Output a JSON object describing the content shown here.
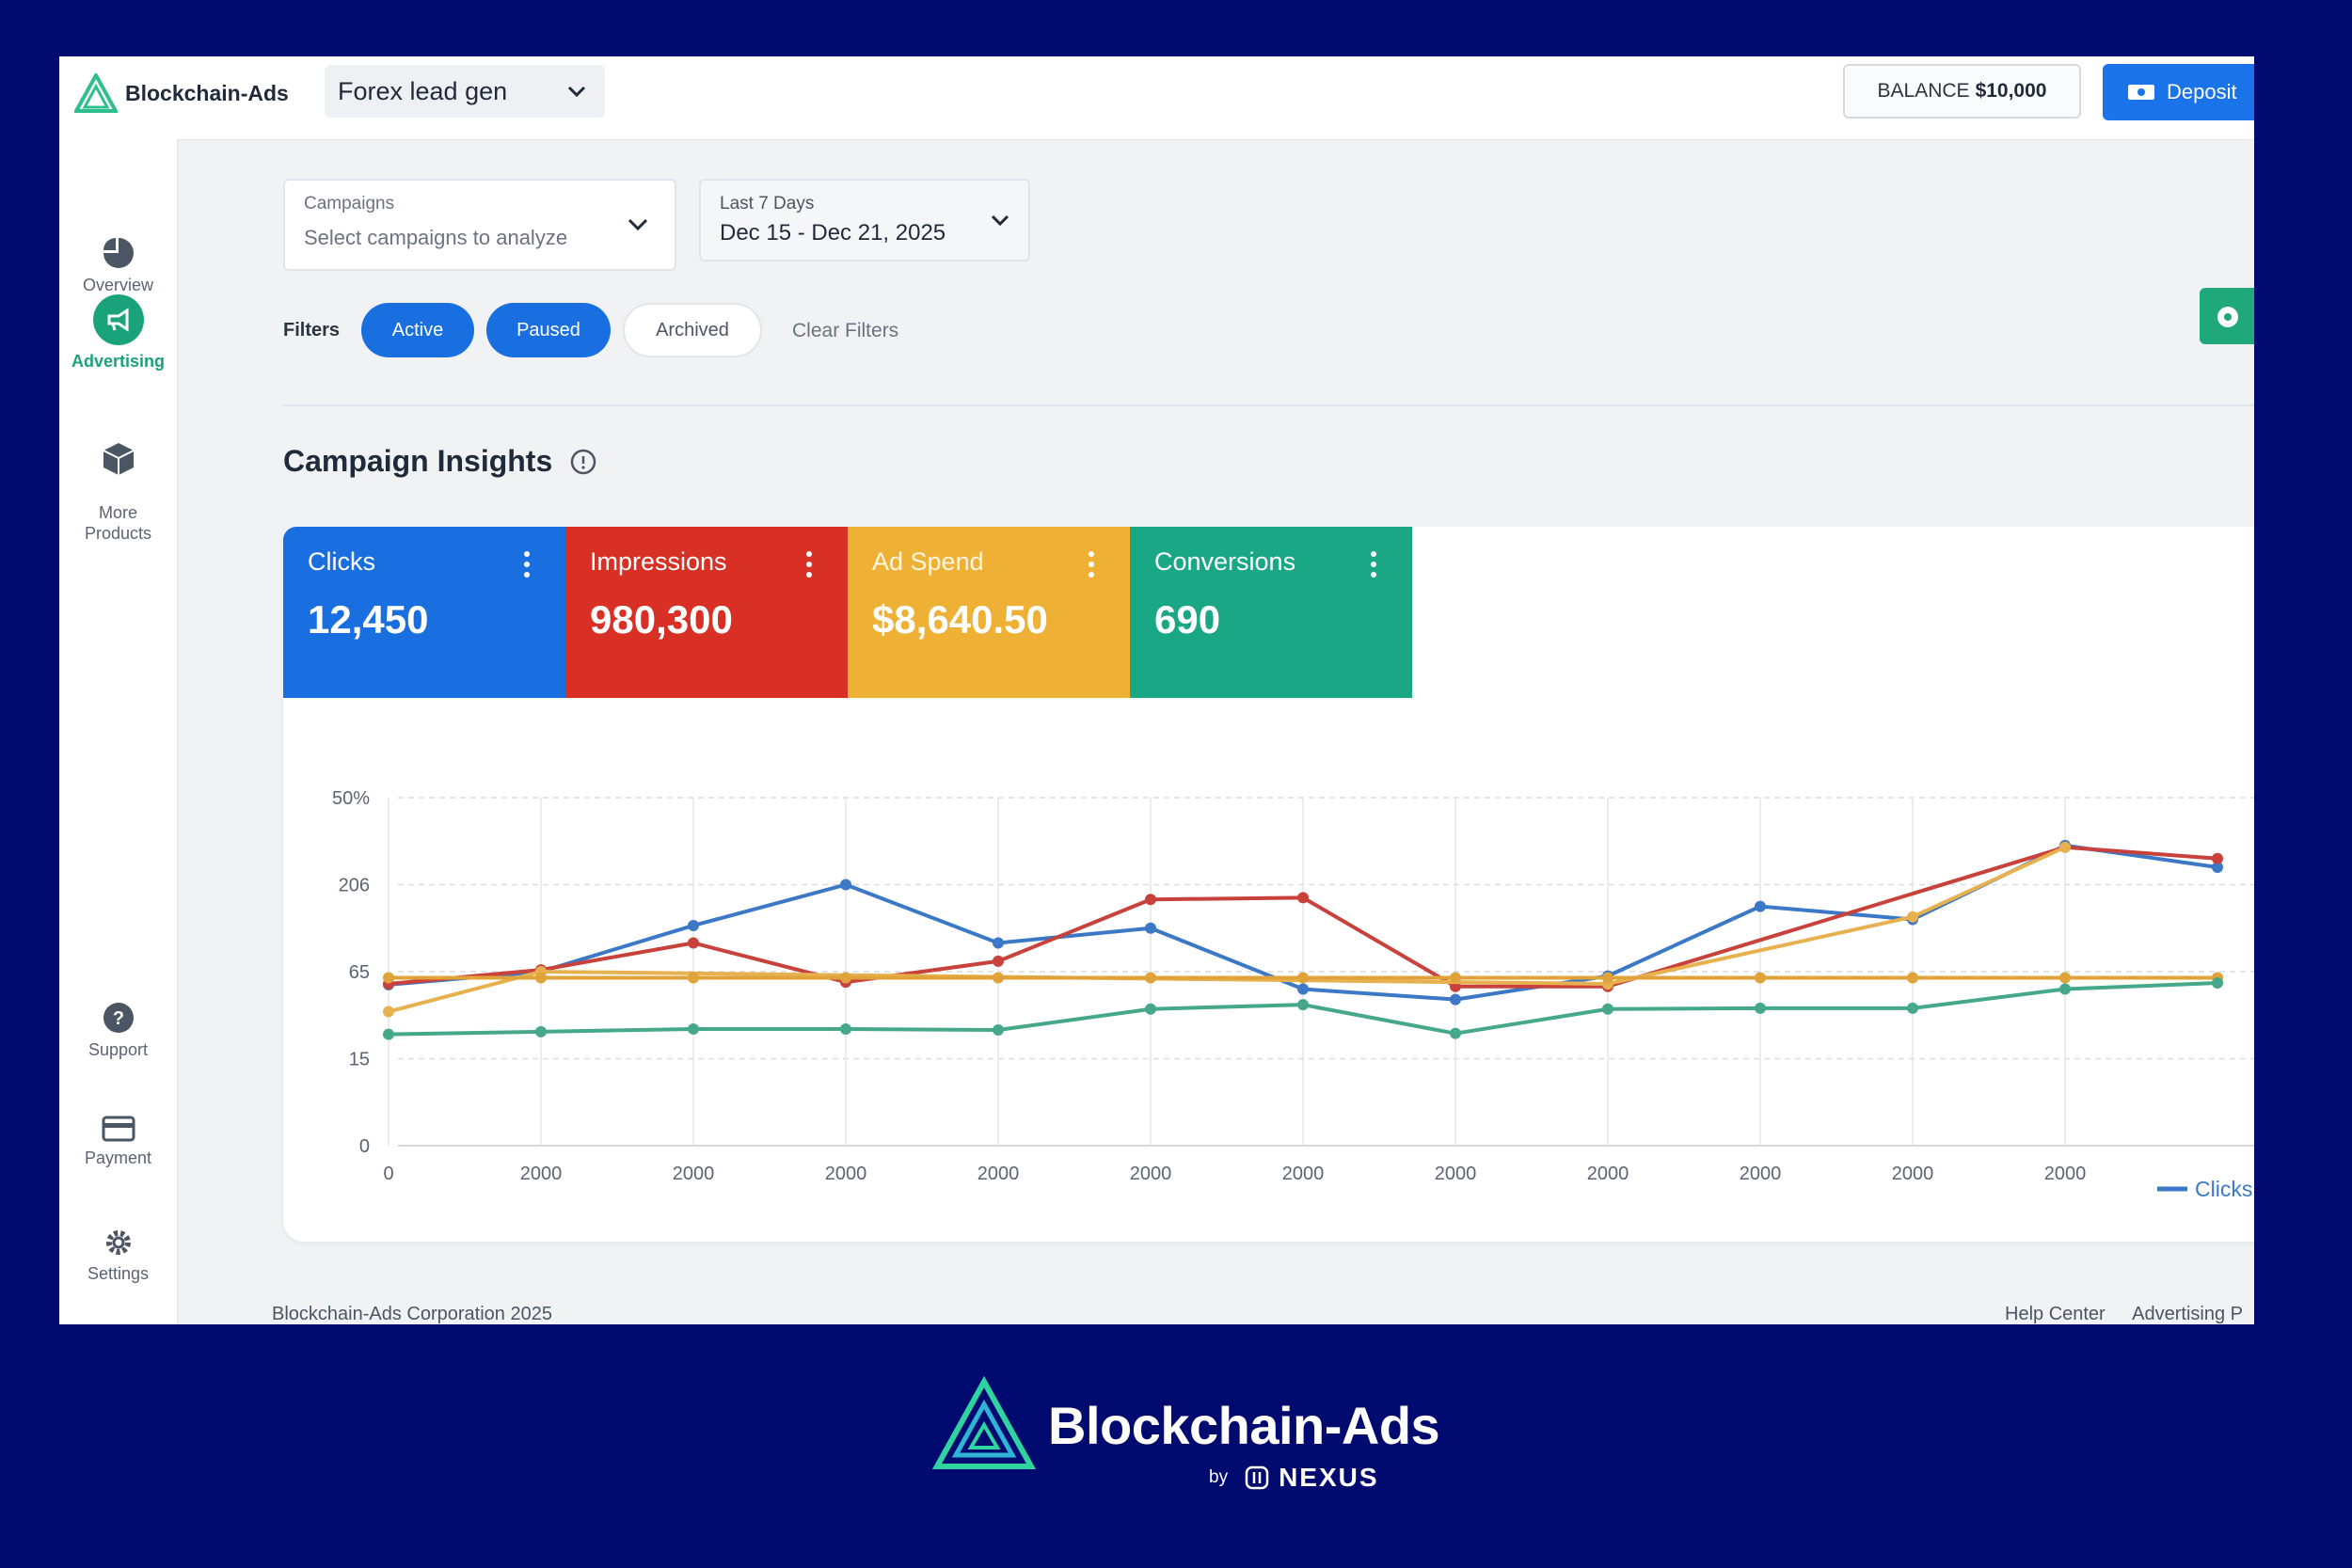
{
  "header": {
    "logo_text": "Blockchain-Ads",
    "campaign_select": "Forex lead gen",
    "balance_label": "BALANCE",
    "balance_value": "$10,000",
    "deposit_label": "Deposit"
  },
  "sidebar": {
    "items": [
      {
        "label": "Overview",
        "icon": "pie-chart-icon"
      },
      {
        "label": "Advertising",
        "icon": "megaphone-icon"
      },
      {
        "label": "More\nProducts",
        "icon": "box-icon"
      },
      {
        "label": "Support",
        "icon": "help-icon"
      },
      {
        "label": "Payment",
        "icon": "card-icon"
      },
      {
        "label": "Settings",
        "icon": "gear-icon"
      }
    ]
  },
  "campaigns_field": {
    "label": "Campaigns",
    "placeholder": "Select campaigns to analyze"
  },
  "date_field": {
    "label": "Last 7 Days",
    "value": "Dec 15 - Dec 21, 2025"
  },
  "filters": {
    "label": "Filters",
    "active": "Active",
    "paused": "Paused",
    "archived": "Archived",
    "clear": "Clear Filters"
  },
  "insights": {
    "title": "Campaign Insights",
    "metrics": [
      {
        "label": "Clicks",
        "value": "12,450",
        "color": "#1a6fe0"
      },
      {
        "label": "Impressions",
        "value": "980,300",
        "color": "#d93025"
      },
      {
        "label": "Ad Spend",
        "value": "$8,640.50",
        "color": "#efb036"
      },
      {
        "label": "Conversions",
        "value": "690",
        "color": "#1aa785"
      }
    ]
  },
  "chart_data": {
    "type": "line",
    "y_tick_labels": [
      "0",
      "15",
      "65",
      "206",
      "50%"
    ],
    "x_tick_labels": [
      "0",
      "2000",
      "2000",
      "2000",
      "2000",
      "2000",
      "2000",
      "2000",
      "2000",
      "2000",
      "2000",
      "2000"
    ],
    "grid": true,
    "legend": {
      "position": "bottom-right",
      "visible_entry": "Clicks"
    },
    "series": [
      {
        "name": "Clicks",
        "color": "#3b78c6",
        "values": [
          1.85,
          2.0,
          2.53,
          3.0,
          2.33,
          2.5,
          1.8,
          1.68,
          1.95,
          2.75,
          2.6,
          3.45,
          3.2
        ]
      },
      {
        "name": "",
        "color": "#c8413a",
        "values": [
          1.86,
          2.02,
          2.33,
          1.88,
          2.12,
          2.83,
          2.85,
          1.83,
          1.83,
          null,
          null,
          3.43,
          3.3
        ]
      },
      {
        "name": "",
        "color": "#e8b150",
        "values": [
          1.54,
          2.0,
          null,
          null,
          null,
          null,
          null,
          null,
          1.86,
          null,
          2.63,
          3.43,
          null
        ]
      },
      {
        "name": "",
        "color": "#e0a33a",
        "values": [
          1.93,
          1.93,
          1.93,
          1.93,
          1.93,
          1.93,
          1.93,
          1.93,
          1.93,
          1.93,
          1.93,
          1.93,
          1.93
        ]
      },
      {
        "name": "",
        "color": "#46a88a",
        "values": [
          1.28,
          1.31,
          1.34,
          1.34,
          1.33,
          1.57,
          1.62,
          1.29,
          1.57,
          1.58,
          1.58,
          1.8,
          1.87
        ]
      }
    ]
  },
  "footer": {
    "copyright": "Blockchain-Ads Corporation 2025",
    "links": [
      "Help Center",
      "Advertising P"
    ]
  },
  "brand": {
    "name": "Blockchain-Ads",
    "by": "by",
    "partner": "NEXUS"
  }
}
